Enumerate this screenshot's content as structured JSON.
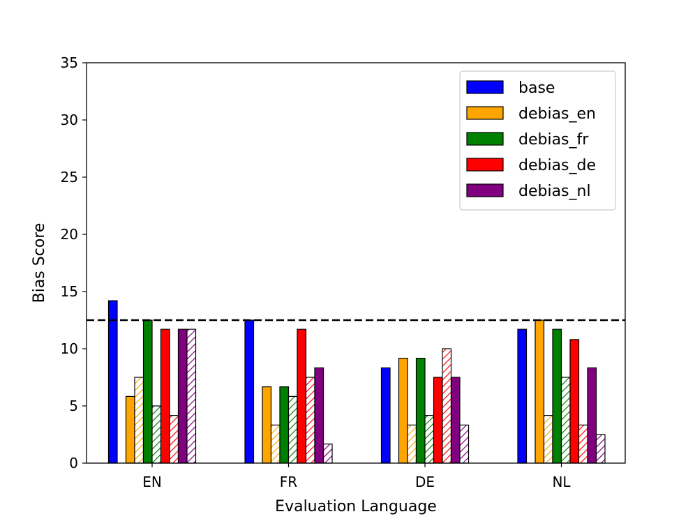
{
  "chart_data": {
    "type": "bar",
    "title": "",
    "xlabel": "Evaluation Language",
    "ylabel": "Bias Score",
    "ylim": [
      0,
      35
    ],
    "yticks": [
      0,
      5,
      10,
      15,
      20,
      25,
      30,
      35
    ],
    "categories": [
      "EN",
      "FR",
      "DE",
      "NL"
    ],
    "reference_line": 12.5,
    "legend_position": "top-right",
    "series": [
      {
        "name": "base",
        "color": "#0000ff",
        "values": [
          14.2,
          12.5,
          8.33,
          11.7
        ],
        "hatched_values": [
          null,
          null,
          null,
          null
        ]
      },
      {
        "name": "debias_en",
        "color": "#ffa500",
        "values": [
          5.83,
          6.67,
          9.17,
          12.5
        ],
        "hatched_values": [
          7.5,
          3.33,
          3.33,
          4.17
        ]
      },
      {
        "name": "debias_fr",
        "color": "#008000",
        "values": [
          12.5,
          6.67,
          9.17,
          11.7
        ],
        "hatched_values": [
          5.0,
          5.83,
          4.17,
          7.5
        ]
      },
      {
        "name": "debias_de",
        "color": "#ff0000",
        "values": [
          11.7,
          11.7,
          7.5,
          10.8
        ],
        "hatched_values": [
          4.17,
          7.5,
          10.0,
          3.33
        ]
      },
      {
        "name": "debias_nl",
        "color": "#800080",
        "values": [
          11.7,
          8.33,
          7.5,
          8.33
        ],
        "hatched_values": [
          11.7,
          1.67,
          3.33,
          2.5
        ]
      }
    ]
  }
}
